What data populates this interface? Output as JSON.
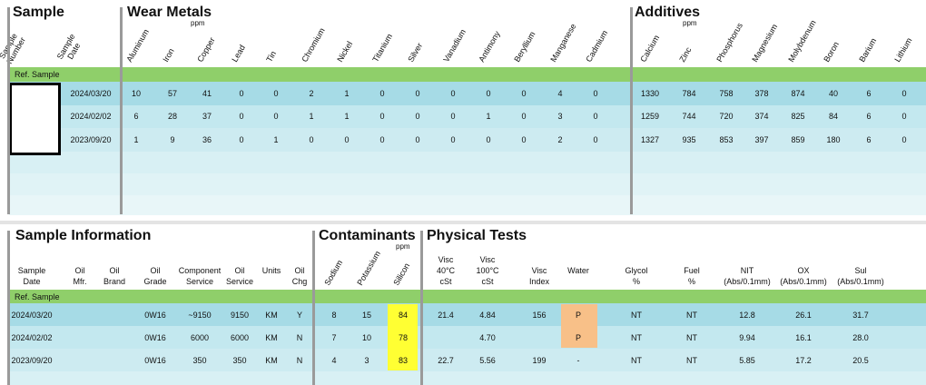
{
  "top": {
    "sample_title": "Sample",
    "wear_title": "Wear Metals",
    "additives_title": "Additives",
    "ppm": "ppm",
    "sample_headers": [
      "Sample\nNumber",
      "Sample\nDate"
    ],
    "wear_headers": [
      "Aluminum",
      "Iron",
      "Copper",
      "Lead",
      "Tin",
      "Chromium",
      "Nickel",
      "Titanium",
      "Silver",
      "Vanadium",
      "Antimony",
      "Beryllium",
      "Manganese",
      "Cadmium"
    ],
    "additive_headers": [
      "Calcium",
      "Zinc",
      "Phosphorus",
      "Magnesium",
      "Molybdenum",
      "Boron",
      "Barium",
      "Lithium"
    ],
    "ref_label": "Ref. Sample",
    "rows": [
      {
        "date": "2024/03/20",
        "wear": [
          "10",
          "57",
          "41",
          "0",
          "0",
          "2",
          "1",
          "0",
          "0",
          "0",
          "0",
          "0",
          "4",
          "0"
        ],
        "additives": [
          "1330",
          "784",
          "758",
          "378",
          "874",
          "40",
          "6",
          "0"
        ]
      },
      {
        "date": "2024/02/02",
        "wear": [
          "6",
          "28",
          "37",
          "0",
          "0",
          "1",
          "1",
          "0",
          "0",
          "0",
          "1",
          "0",
          "3",
          "0"
        ],
        "additives": [
          "1259",
          "744",
          "720",
          "374",
          "825",
          "84",
          "6",
          "0"
        ]
      },
      {
        "date": "2023/09/20",
        "wear": [
          "1",
          "9",
          "36",
          "0",
          "1",
          "0",
          "0",
          "0",
          "0",
          "0",
          "0",
          "0",
          "2",
          "0"
        ],
        "additives": [
          "1327",
          "935",
          "853",
          "397",
          "859",
          "180",
          "6",
          "0"
        ]
      }
    ]
  },
  "bottom": {
    "info_title": "Sample Information",
    "contam_title": "Contaminants",
    "phys_title": "Physical Tests",
    "ppm": "ppm",
    "info_headers": [
      "Sample\nDate",
      "Oil\nMfr.",
      "Oil\nBrand",
      "Oil\nGrade",
      "Component\nService",
      "Oil\nService",
      "Units",
      "Oil\nChg"
    ],
    "contam_headers": [
      "Sodium",
      "Potassium",
      "Silicon"
    ],
    "phys_headers": [
      "Visc\n40°C\ncSt",
      "Visc\n100°C\ncSt",
      "Visc\nIndex",
      "Water",
      "Glycol\n%",
      "Fuel\n%",
      "NIT\n(Abs/0.1mm)",
      "OX\n(Abs/0.1mm)",
      "Sul\n(Abs/0.1mm)"
    ],
    "ref_label": "Ref. Sample",
    "rows": [
      {
        "info": [
          "2024/03/20",
          "",
          "",
          "0W16",
          "~9150",
          "9150",
          "KM",
          "Y"
        ],
        "contam": [
          "8",
          "15",
          "84"
        ],
        "phys": [
          "21.4",
          "4.84",
          "156",
          "P",
          "NT",
          "NT",
          "12.8",
          "26.1",
          "31.7"
        ]
      },
      {
        "info": [
          "2024/02/02",
          "",
          "",
          "0W16",
          "6000",
          "6000",
          "KM",
          "N"
        ],
        "contam": [
          "7",
          "10",
          "78"
        ],
        "phys": [
          "",
          "4.70",
          "",
          "P",
          "NT",
          "NT",
          "9.94",
          "16.1",
          "28.0"
        ]
      },
      {
        "info": [
          "2023/09/20",
          "",
          "",
          "0W16",
          "350",
          "350",
          "KM",
          "N"
        ],
        "contam": [
          "4",
          "3",
          "83"
        ],
        "phys": [
          "22.7",
          "5.56",
          "199",
          "-",
          "NT",
          "NT",
          "5.85",
          "17.2",
          "20.5"
        ]
      }
    ]
  },
  "colors": {
    "ref_band": "#8fcf6a",
    "row_band": "#a6dbe6",
    "silicon_flag": "#ffff33",
    "water_flag": "#f8c088",
    "rule": "#9a9a9a"
  }
}
